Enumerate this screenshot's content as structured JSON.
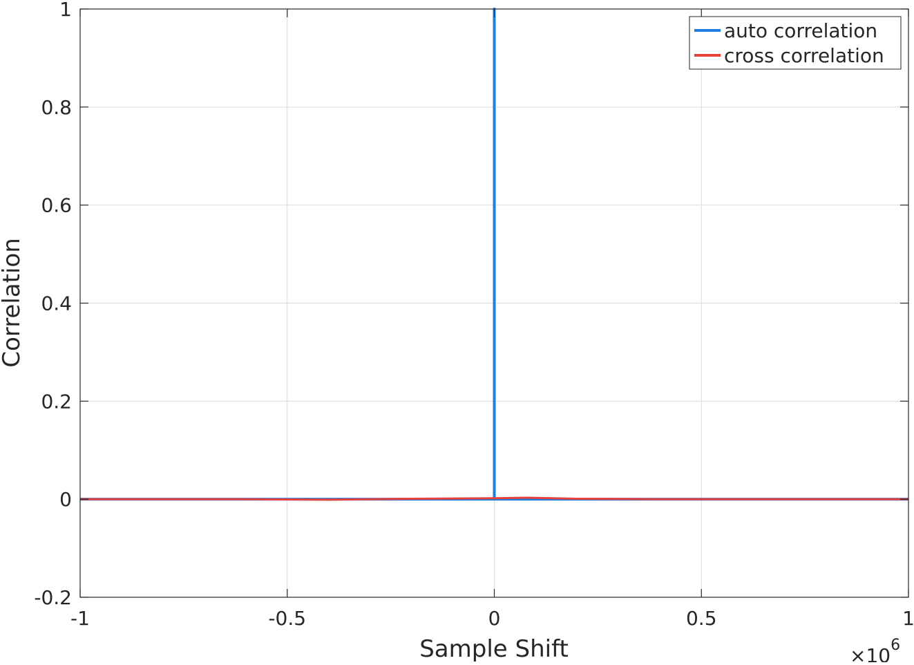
{
  "chart_data": {
    "type": "line",
    "title": "",
    "xlabel": "Sample Shift",
    "ylabel": "Correlation",
    "xlim": [
      -1000000,
      1000000
    ],
    "ylim": [
      -0.2,
      1
    ],
    "x_exponent_base": "×10",
    "x_exponent_power": "6",
    "x_ticks": [
      -1000000,
      -500000,
      0,
      500000,
      1000000
    ],
    "x_tick_labels": [
      "-1",
      "-0.5",
      "0",
      "0.5",
      "1"
    ],
    "y_ticks": [
      -0.2,
      0,
      0.2,
      0.4,
      0.6,
      0.8,
      1
    ],
    "y_tick_labels": [
      "-0.2",
      "0",
      "0.2",
      "0.4",
      "0.6",
      "0.8",
      "1"
    ],
    "grid": true,
    "legend_position": "top-right",
    "series": [
      {
        "name": "auto correlation",
        "color": "#1f7fe0",
        "x": [
          -1000000,
          -1,
          0,
          1,
          1000000
        ],
        "y": [
          0,
          0,
          1,
          0,
          0
        ]
      },
      {
        "name": "cross correlation",
        "color": "#e8413c",
        "x": [
          -1000000,
          -800000,
          -600000,
          -400000,
          -200000,
          0,
          80000,
          200000,
          400000,
          600000,
          800000,
          1000000
        ],
        "y": [
          0,
          0,
          0,
          -0.001,
          0.001,
          0.002,
          0.003,
          0.001,
          0,
          0,
          0,
          0
        ]
      }
    ]
  }
}
